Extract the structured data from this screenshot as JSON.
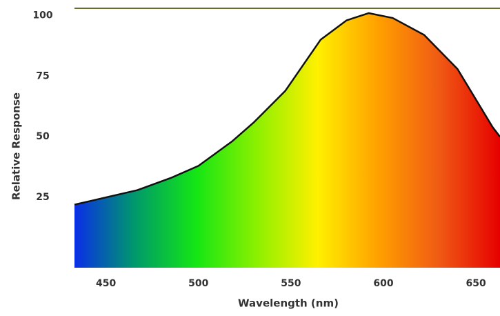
{
  "chart_data": {
    "type": "area",
    "x_label": "Wavelength (nm)",
    "y_label": "Relative Response",
    "x": [
      433,
      450,
      467,
      485,
      500,
      518,
      530,
      547,
      566,
      580,
      592,
      605,
      622,
      640,
      659,
      663
    ],
    "y": [
      22,
      25,
      28,
      33,
      38,
      48,
      56,
      69,
      90,
      98,
      101,
      99,
      92,
      78,
      54,
      50
    ],
    "line_color": "#111111",
    "fill_gradient": [
      "#0a2de8",
      "#009a6a",
      "#14e614",
      "#8cf000",
      "#fff000",
      "#ffa000",
      "#f05a14",
      "#e60000"
    ],
    "xlim": [
      433,
      663
    ],
    "ylim": [
      -4,
      103
    ],
    "xticks": [
      450,
      500,
      550,
      600,
      650
    ],
    "yticks": [
      25,
      50,
      75,
      100
    ],
    "grid": false
  }
}
